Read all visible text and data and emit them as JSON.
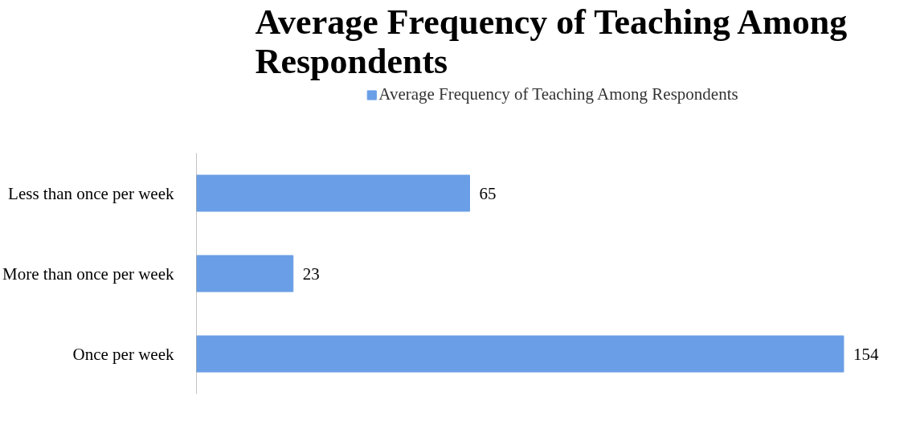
{
  "chart_data": {
    "type": "bar",
    "orientation": "horizontal",
    "title": "Average Frequency of Teaching Among Respondents",
    "categories": [
      "Less than once per week",
      "More than once per week",
      "Once per week"
    ],
    "series": [
      {
        "name": "Average Frequency of Teaching Among Respondents",
        "color": "#6a9ee6",
        "values": [
          65,
          23,
          154
        ]
      }
    ],
    "tick_labels": "y",
    "data_labels": true,
    "legend": "top",
    "grid": false
  }
}
